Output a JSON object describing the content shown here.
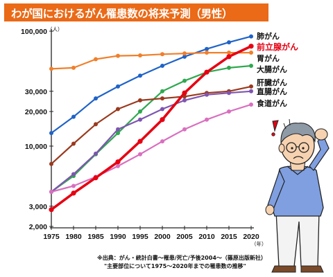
{
  "title": "わが国におけるがん罹患数の将来予測（男性）",
  "source_line1": "※出典：がん・統計白書～罹患/死亡/予後2004～（篠原出版新社）",
  "source_line2": "\"主要部位について1975～2020年までの罹患数の推移\"",
  "colors": {
    "banner": "#ea6a17",
    "highlight_label": "#e60012"
  },
  "chart_data": {
    "type": "line",
    "title": "わが国におけるがん罹患数の将来予測（男性）",
    "xlabel": "",
    "ylabel": "",
    "x_unit": "（年）",
    "y_unit": "（人）",
    "y_scale": "log",
    "ylim": [
      2000,
      100000
    ],
    "y_ticks": [
      {
        "value": 2000,
        "label": "2,000"
      },
      {
        "value": 3000,
        "label": "3,000"
      },
      {
        "value": 10000,
        "label": "10,000"
      },
      {
        "value": 20000,
        "label": "20,000"
      },
      {
        "value": 30000,
        "label": "30,000"
      },
      {
        "value": 100000,
        "label": "100,000"
      }
    ],
    "x": [
      1975,
      1980,
      1985,
      1990,
      1995,
      2000,
      2005,
      2010,
      2015,
      2020
    ],
    "grid": false,
    "legend": "right end labels",
    "series": [
      {
        "name": "肺がん",
        "color": "#1f63c8",
        "values": [
          13000,
          18000,
          26000,
          33000,
          41000,
          50000,
          60000,
          70000,
          80000,
          90000
        ]
      },
      {
        "name": "前立腺がん",
        "color": "#e60012",
        "highlight": true,
        "values": [
          2800,
          3900,
          5300,
          7300,
          11000,
          17000,
          29000,
          44000,
          60000,
          74000
        ]
      },
      {
        "name": "胃がん",
        "color": "#f07f2a",
        "values": [
          47000,
          48000,
          57000,
          61000,
          61500,
          63000,
          64000,
          65000,
          65000,
          65000
        ]
      },
      {
        "name": "大腸がん",
        "color": "#2fa84f",
        "values": [
          4000,
          5500,
          8500,
          13000,
          20000,
          30000,
          37000,
          44000,
          48000,
          50000
        ]
      },
      {
        "name": "肝臓がん",
        "color": "#9a3a1e",
        "values": [
          7000,
          10500,
          15500,
          21000,
          25000,
          26000,
          27000,
          29000,
          30000,
          33000
        ]
      },
      {
        "name": "直腸がん",
        "color": "#7f55b0",
        "values": [
          4000,
          5700,
          8600,
          14000,
          17000,
          21000,
          25000,
          28000,
          29000,
          30000
        ]
      },
      {
        "name": "食道がん",
        "color": "#d96fbf",
        "values": [
          4000,
          4500,
          5400,
          6700,
          8500,
          11000,
          14000,
          17000,
          20000,
          23000
        ]
      }
    ],
    "series_label_ypos": {
      "肺がん": 56,
      "前立腺がん": 72,
      "胃がん": 88,
      "大腸がん": 104,
      "肝臓がん": 123,
      "直腸がん": 136,
      "食道がん": 153
    }
  }
}
